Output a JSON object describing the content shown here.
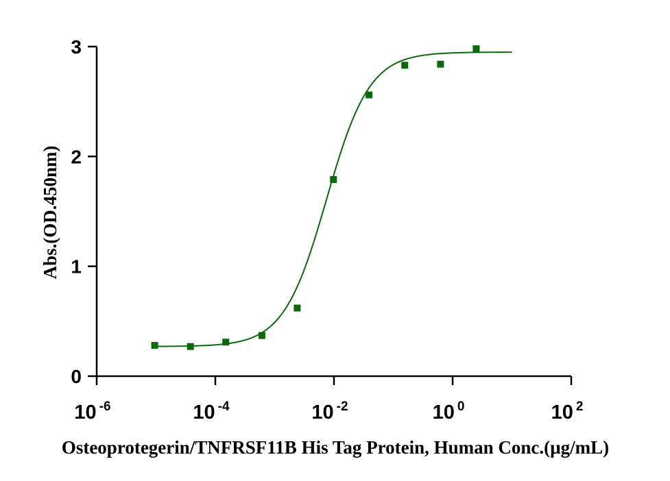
{
  "chart_data": {
    "type": "scatter",
    "title": "",
    "xlabel": "Osteoprotegerin/TNFRSF11B His Tag Protein, Human Conc.(µg/mL)",
    "ylabel": "Abs.(OD.450nm)",
    "x_scale": "log",
    "xlim": [
      1e-06,
      100
    ],
    "ylim": [
      0,
      3
    ],
    "x_ticks": [
      {
        "base": "10",
        "exp": "-6",
        "value": 1e-06
      },
      {
        "base": "10",
        "exp": "-4",
        "value": 0.0001
      },
      {
        "base": "10",
        "exp": "-2",
        "value": 0.01
      },
      {
        "base": "10",
        "exp": "0",
        "value": 1
      },
      {
        "base": "10",
        "exp": "2",
        "value": 100
      }
    ],
    "y_ticks": [
      "0",
      "1",
      "2",
      "3"
    ],
    "grid": false,
    "legend": "none",
    "color": "#0a6a0a",
    "series": [
      {
        "points": [
          {
            "x": 9.5e-06,
            "y": 0.28
          },
          {
            "x": 3.8e-05,
            "y": 0.27
          },
          {
            "x": 0.00015,
            "y": 0.31
          },
          {
            "x": 0.00061,
            "y": 0.37
          },
          {
            "x": 0.0024,
            "y": 0.62
          },
          {
            "x": 0.0098,
            "y": 1.79
          },
          {
            "x": 0.039,
            "y": 2.56
          },
          {
            "x": 0.156,
            "y": 2.83
          },
          {
            "x": 0.625,
            "y": 2.84
          },
          {
            "x": 2.5,
            "y": 2.98
          }
        ],
        "fit": {
          "model": "4PL",
          "bottom": 0.27,
          "top": 2.95,
          "ec50": 0.0075,
          "hill": 1.2,
          "x_range": [
            9.5e-06,
            10
          ]
        }
      }
    ]
  }
}
